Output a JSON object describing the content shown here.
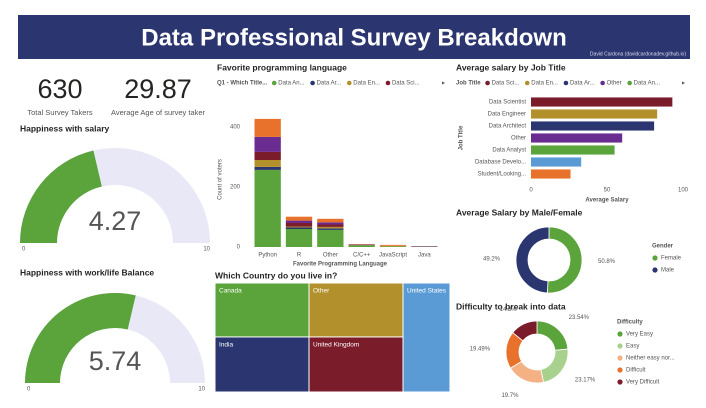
{
  "title": "Data Professional Survey Breakdown",
  "credit": "David Cardona (davidcardonadev.github.io)",
  "kpis": [
    {
      "value": 630,
      "label": "Total Survey Takers"
    },
    {
      "value": 29.87,
      "label": "Average Age of survey taker"
    }
  ],
  "chart_data": [
    {
      "type": "gauge",
      "title": "Happiness with salary",
      "value": 4.27,
      "range": [
        0,
        10
      ],
      "color": "#5ba33b",
      "track_color": "#e9e8f7"
    },
    {
      "type": "gauge",
      "title": "Happiness with work/life Balance",
      "value": 5.74,
      "range": [
        0,
        10
      ],
      "color": "#5ba33b",
      "track_color": "#e9e8f7"
    },
    {
      "type": "bar",
      "stacked": true,
      "title": "Favorite programming language",
      "legend_title": "Q1 - Which Title...",
      "categories": [
        "Python",
        "R",
        "Other",
        "C/C++",
        "JavaScript",
        "Java"
      ],
      "series": [
        {
          "name": "Data An...",
          "color": "#5ba33b",
          "values": [
            257,
            60,
            57,
            5,
            2,
            1
          ]
        },
        {
          "name": "Data Ar...",
          "color": "#2b3671",
          "values": [
            10,
            5,
            5,
            1,
            0,
            0
          ]
        },
        {
          "name": "Data En...",
          "color": "#b2902b",
          "values": [
            23,
            3,
            5,
            1,
            2,
            0
          ]
        },
        {
          "name": "Data Sci...",
          "color": "#7b1c2b",
          "values": [
            27,
            12,
            8,
            1,
            0,
            1
          ]
        },
        {
          "color": "#6b2c91",
          "values": [
            50,
            8,
            7,
            1,
            0,
            1
          ]
        },
        {
          "color": "#e8712b",
          "values": [
            60,
            13,
            12,
            1,
            3,
            0
          ]
        }
      ],
      "ylim": [
        0,
        450
      ],
      "yticks": [
        0,
        200,
        400
      ],
      "xlabel": "Favorite Programming Language",
      "ylabel": "Count of voters"
    },
    {
      "type": "bar",
      "orientation": "horizontal",
      "title": "Average salary by Job Title",
      "legend": {
        "title": "Job Title",
        "items": [
          {
            "name": "Data Sci...",
            "color": "#7b1c2b"
          },
          {
            "name": "Data En...",
            "color": "#b2902b"
          },
          {
            "name": "Data Ar...",
            "color": "#2b3671"
          },
          {
            "name": "Other",
            "color": "#6b2c91"
          },
          {
            "name": "Data An...",
            "color": "#5ba33b"
          }
        ]
      },
      "categories": [
        "Data Scientist",
        "Data Engineer",
        "Data Architect",
        "Other",
        "Data Analyst",
        "Database Develo...",
        "Student/Looking..."
      ],
      "values": [
        93,
        83,
        81,
        60,
        55,
        33,
        26
      ],
      "colors": [
        "#7b1c2b",
        "#b2902b",
        "#2b3671",
        "#6b2c91",
        "#5ba33b",
        "#5b9bd5",
        "#e8712b"
      ],
      "xlim": [
        0,
        100
      ],
      "xticks": [
        0,
        50,
        100
      ],
      "xlabel": "Average Salary",
      "ylabel": "Job Title"
    },
    {
      "type": "treemap",
      "title": "Which Country do you live in?",
      "categories": [
        "Canada",
        "Other",
        "United States",
        "India",
        "United Kingdom"
      ],
      "values": [
        100,
        100,
        101,
        102,
        102
      ],
      "colors": [
        "#5ba33b",
        "#b2902b",
        "#5b9bd5",
        "#2b3671",
        "#7b1c2b"
      ]
    },
    {
      "type": "donut",
      "title": "Average Salary by Male/Female",
      "legend_title": "Gender",
      "categories": [
        "Female",
        "Male"
      ],
      "values": [
        50.8,
        49.2
      ],
      "value_labels": [
        "50.8%",
        "49.2%"
      ],
      "colors": [
        "#5ba33b",
        "#2b3671"
      ]
    },
    {
      "type": "donut",
      "title": "Difficulty to break into data",
      "legend_title": "Difficulty",
      "categories": [
        "Very Easy",
        "Easy",
        "Neither easy nor...",
        "Difficult",
        "Very Difficult"
      ],
      "values": [
        23.54,
        23.17,
        19.7,
        19.49,
        14.3
      ],
      "value_labels": [
        "23.54%",
        "23.17%",
        "19.7%",
        "19.49%",
        "14.3%"
      ],
      "colors": [
        "#5ba33b",
        "#a9d18e",
        "#f4b183",
        "#e8712b",
        "#7b1c2b"
      ]
    }
  ]
}
